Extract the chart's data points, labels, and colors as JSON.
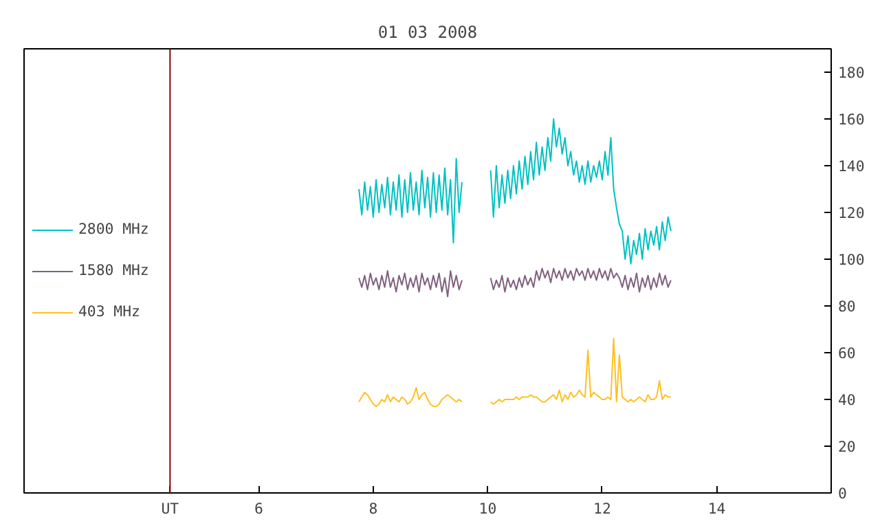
{
  "chart_data": {
    "type": "line",
    "title": "01 03 2008",
    "x": [
      7.75,
      7.8,
      7.85,
      7.9,
      7.95,
      8.0,
      8.05,
      8.1,
      8.15,
      8.2,
      8.25,
      8.3,
      8.35,
      8.4,
      8.45,
      8.5,
      8.55,
      8.6,
      8.65,
      8.7,
      8.75,
      8.8,
      8.85,
      8.9,
      8.95,
      9.0,
      9.05,
      9.1,
      9.15,
      9.2,
      9.25,
      9.3,
      9.35,
      9.4,
      9.45,
      9.5,
      9.55,
      9.8,
      10.05,
      10.1,
      10.15,
      10.2,
      10.25,
      10.3,
      10.35,
      10.4,
      10.45,
      10.5,
      10.55,
      10.6,
      10.65,
      10.7,
      10.75,
      10.8,
      10.85,
      10.9,
      10.95,
      11.0,
      11.05,
      11.1,
      11.15,
      11.2,
      11.25,
      11.3,
      11.35,
      11.4,
      11.45,
      11.5,
      11.55,
      11.6,
      11.65,
      11.7,
      11.75,
      11.8,
      11.85,
      11.9,
      11.95,
      12.0,
      12.05,
      12.1,
      12.15,
      12.2,
      12.25,
      12.3,
      12.35,
      12.4,
      12.45,
      12.5,
      12.55,
      12.6,
      12.65,
      12.7,
      12.75,
      12.8,
      12.85,
      12.9,
      12.95,
      13.0,
      13.05,
      13.1,
      13.15,
      13.2
    ],
    "series": [
      {
        "name": "2800 MHz",
        "color": "#00c0c0",
        "values": [
          130,
          119,
          133,
          121,
          131,
          118,
          134,
          120,
          132,
          122,
          135,
          119,
          133,
          121,
          136,
          118,
          134,
          120,
          137,
          121,
          133,
          119,
          138,
          122,
          135,
          118,
          137,
          120,
          136,
          121,
          139,
          119,
          134,
          107,
          143,
          120,
          133,
          null,
          138,
          118,
          140,
          122,
          136,
          124,
          138,
          126,
          140,
          128,
          142,
          130,
          144,
          132,
          146,
          134,
          150,
          136,
          148,
          138,
          152,
          142,
          160,
          148,
          156,
          145,
          152,
          140,
          146,
          136,
          142,
          133,
          140,
          132,
          142,
          133,
          140,
          135,
          142,
          134,
          146,
          136,
          152,
          130,
          122,
          115,
          112,
          100,
          110,
          98,
          108,
          102,
          111,
          100,
          113,
          104,
          112,
          106,
          114,
          104,
          116,
          108,
          118,
          112
        ]
      },
      {
        "name": "1580 MHz",
        "color": "#806080",
        "values": [
          92,
          88,
          93,
          87,
          94,
          89,
          92,
          87,
          93,
          88,
          95,
          88,
          92,
          86,
          93,
          89,
          94,
          87,
          92,
          88,
          93,
          86,
          94,
          89,
          92,
          87,
          93,
          88,
          94,
          86,
          92,
          84,
          95,
          88,
          93,
          87,
          91,
          null,
          92,
          87,
          91,
          88,
          93,
          86,
          92,
          88,
          91,
          87,
          92,
          88,
          93,
          89,
          92,
          88,
          95,
          91,
          96,
          92,
          95,
          90,
          96,
          92,
          95,
          91,
          96,
          92,
          95,
          91,
          96,
          93,
          95,
          91,
          96,
          92,
          95,
          91,
          96,
          92,
          95,
          91,
          96,
          92,
          94,
          92,
          88,
          93,
          87,
          92,
          88,
          94,
          86,
          92,
          88,
          93,
          87,
          92,
          88,
          94,
          89,
          93,
          88,
          91
        ]
      },
      {
        "name": "403 MHz",
        "color": "#ffc020",
        "values": [
          39,
          41,
          43,
          42,
          40,
          38,
          37,
          38,
          40,
          39,
          42,
          39,
          41,
          40,
          39,
          41,
          40,
          38,
          39,
          41,
          45,
          40,
          42,
          43,
          40,
          38,
          37,
          37,
          38,
          40,
          41,
          42,
          41,
          40,
          39,
          40,
          39,
          null,
          39,
          38,
          39,
          40,
          39,
          40,
          40,
          40,
          40,
          41,
          40,
          41,
          41,
          41,
          42,
          41,
          41,
          40,
          39,
          39,
          40,
          41,
          42,
          40,
          44,
          39,
          42,
          40,
          43,
          41,
          42,
          44,
          42,
          41,
          61,
          41,
          43,
          42,
          41,
          40,
          40,
          41,
          40,
          66,
          39,
          59,
          41,
          40,
          39,
          40,
          39,
          40,
          41,
          40,
          39,
          42,
          40,
          40,
          41,
          48,
          40,
          42,
          41,
          41
        ]
      }
    ],
    "xlim": [
      1.9,
      16.0
    ],
    "ylim": [
      0,
      190
    ],
    "xticks": [
      {
        "value": 4.45,
        "label": "UT"
      },
      6,
      8,
      10,
      12,
      14
    ],
    "yticks": [
      0,
      20,
      40,
      60,
      80,
      100,
      120,
      140,
      160,
      180
    ],
    "ref_lines": [
      {
        "axis": "x",
        "value": 4.45,
        "color": "#8b0000"
      }
    ],
    "legend": "left",
    "grid": false,
    "marker": "none",
    "line_style": "solid"
  }
}
